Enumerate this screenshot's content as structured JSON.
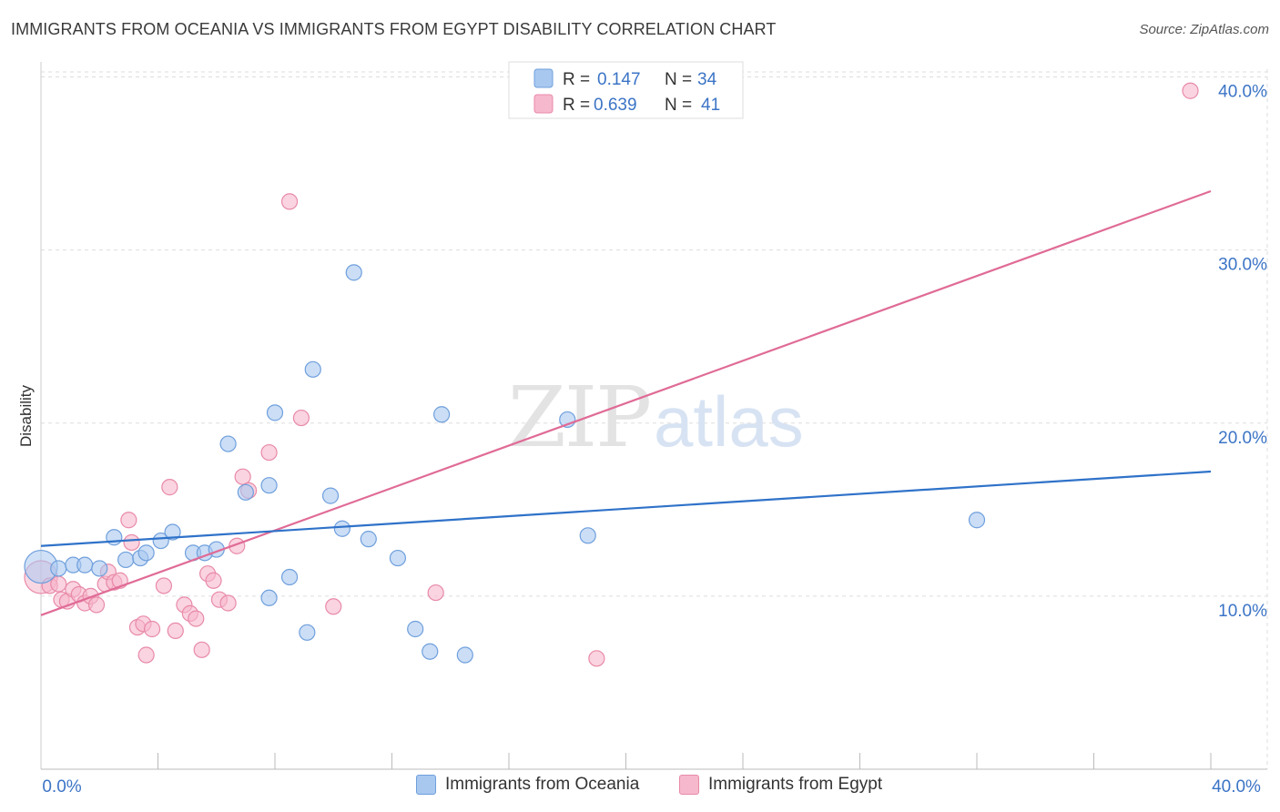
{
  "header": {
    "title": "IMMIGRANTS FROM OCEANIA VS IMMIGRANTS FROM EGYPT DISABILITY CORRELATION CHART",
    "source": "Source: ZipAtlas.com"
  },
  "watermark": {
    "part1": "ZIP",
    "part2": "atlas"
  },
  "colors": {
    "oceania_fill": "#a9c8f0",
    "oceania_stroke": "#6f9fdc",
    "oceania_line": "#2f72c9",
    "egypt_fill": "#f6b8cc",
    "egypt_stroke": "#e88aa8",
    "egypt_line": "#e06b96",
    "tick_label": "#3b74c6",
    "grid": "#dddddd"
  },
  "legend": {
    "rows": [
      {
        "r_label": "R =",
        "r_value": "0.147",
        "n_label": "N =",
        "n_value": "34"
      },
      {
        "r_label": "R =",
        "r_value": "0.639",
        "n_label": "N =",
        "n_value": "41"
      }
    ]
  },
  "chart_data": {
    "type": "scatter",
    "title": "IMMIGRANTS FROM OCEANIA VS IMMIGRANTS FROM EGYPT DISABILITY CORRELATION CHART",
    "xlabel": "",
    "ylabel": "Disability",
    "xlim": [
      0,
      40
    ],
    "ylim": [
      0,
      41.5
    ],
    "x_tick_labels": [
      "0.0%",
      "40.0%"
    ],
    "y_ticks": [
      10,
      20,
      30,
      40
    ],
    "y_tick_labels": [
      "10.0%",
      "20.0%",
      "30.0%",
      "40.0%"
    ],
    "grid": true,
    "legend_position": "top-center",
    "series": [
      {
        "name": "Immigrants from Oceania",
        "r": 0.147,
        "n": 34,
        "trend": {
          "x": [
            0,
            40
          ],
          "y": [
            12.9,
            17.2
          ]
        },
        "points": [
          [
            0.0,
            11.7
          ],
          [
            0.6,
            11.6
          ],
          [
            1.1,
            11.8
          ],
          [
            1.5,
            11.8
          ],
          [
            2.0,
            11.6
          ],
          [
            2.5,
            13.4
          ],
          [
            2.9,
            12.1
          ],
          [
            3.4,
            12.2
          ],
          [
            3.6,
            12.5
          ],
          [
            4.1,
            13.2
          ],
          [
            4.5,
            13.7
          ],
          [
            5.2,
            12.5
          ],
          [
            5.6,
            12.5
          ],
          [
            6.0,
            12.7
          ],
          [
            6.4,
            18.8
          ],
          [
            7.0,
            16.0
          ],
          [
            7.8,
            9.9
          ],
          [
            7.8,
            16.4
          ],
          [
            8.0,
            20.6
          ],
          [
            8.5,
            11.1
          ],
          [
            9.1,
            7.9
          ],
          [
            9.3,
            23.1
          ],
          [
            9.9,
            15.8
          ],
          [
            10.3,
            13.9
          ],
          [
            10.7,
            28.7
          ],
          [
            11.2,
            13.3
          ],
          [
            12.2,
            12.2
          ],
          [
            12.8,
            8.1
          ],
          [
            13.3,
            6.8
          ],
          [
            13.7,
            20.5
          ],
          [
            14.5,
            6.6
          ],
          [
            18.0,
            20.2
          ],
          [
            18.7,
            13.5
          ],
          [
            32.0,
            14.4
          ]
        ]
      },
      {
        "name": "Immigrants from Egypt",
        "r": 0.639,
        "n": 41,
        "trend": {
          "x": [
            0,
            40
          ],
          "y": [
            8.9,
            33.4
          ]
        },
        "points": [
          [
            0.0,
            11.1
          ],
          [
            0.3,
            10.6
          ],
          [
            0.6,
            10.7
          ],
          [
            0.7,
            9.8
          ],
          [
            0.9,
            9.7
          ],
          [
            1.1,
            10.4
          ],
          [
            1.3,
            10.1
          ],
          [
            1.5,
            9.6
          ],
          [
            1.7,
            10.0
          ],
          [
            1.9,
            9.5
          ],
          [
            2.2,
            10.7
          ],
          [
            2.3,
            11.4
          ],
          [
            2.5,
            10.8
          ],
          [
            2.7,
            10.9
          ],
          [
            3.0,
            14.4
          ],
          [
            3.1,
            13.1
          ],
          [
            3.3,
            8.2
          ],
          [
            3.5,
            8.4
          ],
          [
            3.6,
            6.6
          ],
          [
            3.8,
            8.1
          ],
          [
            4.2,
            10.6
          ],
          [
            4.4,
            16.3
          ],
          [
            4.6,
            8.0
          ],
          [
            4.9,
            9.5
          ],
          [
            5.1,
            9.0
          ],
          [
            5.3,
            8.7
          ],
          [
            5.5,
            6.9
          ],
          [
            5.7,
            11.3
          ],
          [
            5.9,
            10.9
          ],
          [
            6.1,
            9.8
          ],
          [
            6.4,
            9.6
          ],
          [
            6.7,
            12.9
          ],
          [
            6.9,
            16.9
          ],
          [
            7.1,
            16.1
          ],
          [
            7.8,
            18.3
          ],
          [
            8.5,
            32.8
          ],
          [
            8.9,
            20.3
          ],
          [
            10.0,
            9.4
          ],
          [
            13.5,
            10.2
          ],
          [
            19.0,
            6.4
          ],
          [
            39.3,
            39.2
          ]
        ]
      }
    ]
  }
}
